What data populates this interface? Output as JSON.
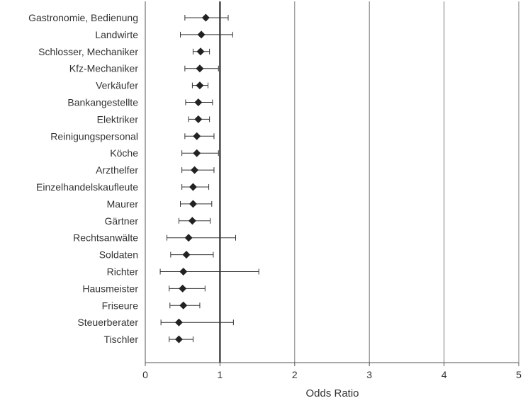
{
  "chart_data": {
    "type": "forest-plot",
    "xlabel": "Odds Ratio",
    "xlim": [
      0,
      5
    ],
    "xticks": [
      "0",
      "1",
      "2",
      "3",
      "4",
      "5"
    ],
    "reference_line": 1,
    "grid": "vertical",
    "marker_color": "#222222",
    "categories": [
      {
        "label": "Gastronomie, Bedienung",
        "or": 0.81,
        "lo": 0.53,
        "hi": 1.11
      },
      {
        "label": "Landwirte",
        "or": 0.75,
        "lo": 0.47,
        "hi": 1.17
      },
      {
        "label": "Schlosser, Mechaniker",
        "or": 0.74,
        "lo": 0.64,
        "hi": 0.86
      },
      {
        "label": "Kfz-Mechaniker",
        "or": 0.73,
        "lo": 0.53,
        "hi": 0.98
      },
      {
        "label": "Verkäufer",
        "or": 0.73,
        "lo": 0.63,
        "hi": 0.84
      },
      {
        "label": "Bankangestellte",
        "or": 0.71,
        "lo": 0.54,
        "hi": 0.9
      },
      {
        "label": "Elektriker",
        "or": 0.71,
        "lo": 0.58,
        "hi": 0.86
      },
      {
        "label": "Reinigungspersonal",
        "or": 0.69,
        "lo": 0.53,
        "hi": 0.92
      },
      {
        "label": "Köche",
        "or": 0.69,
        "lo": 0.49,
        "hi": 0.98
      },
      {
        "label": "Arzthelfer",
        "or": 0.66,
        "lo": 0.49,
        "hi": 0.92
      },
      {
        "label": "Einzelhandelskaufleute",
        "or": 0.64,
        "lo": 0.49,
        "hi": 0.85
      },
      {
        "label": "Maurer",
        "or": 0.64,
        "lo": 0.47,
        "hi": 0.89
      },
      {
        "label": "Gärtner",
        "or": 0.63,
        "lo": 0.45,
        "hi": 0.87
      },
      {
        "label": "Rechtsanwälte",
        "or": 0.58,
        "lo": 0.29,
        "hi": 1.21
      },
      {
        "label": "Soldaten",
        "or": 0.55,
        "lo": 0.34,
        "hi": 0.91
      },
      {
        "label": "Richter",
        "or": 0.51,
        "lo": 0.2,
        "hi": 1.52
      },
      {
        "label": "Hausmeister",
        "or": 0.5,
        "lo": 0.32,
        "hi": 0.8
      },
      {
        "label": "Friseure",
        "or": 0.51,
        "lo": 0.33,
        "hi": 0.73
      },
      {
        "label": "Steuerberater",
        "or": 0.45,
        "lo": 0.21,
        "hi": 1.18
      },
      {
        "label": "Tischler",
        "or": 0.45,
        "lo": 0.32,
        "hi": 0.64
      }
    ]
  }
}
